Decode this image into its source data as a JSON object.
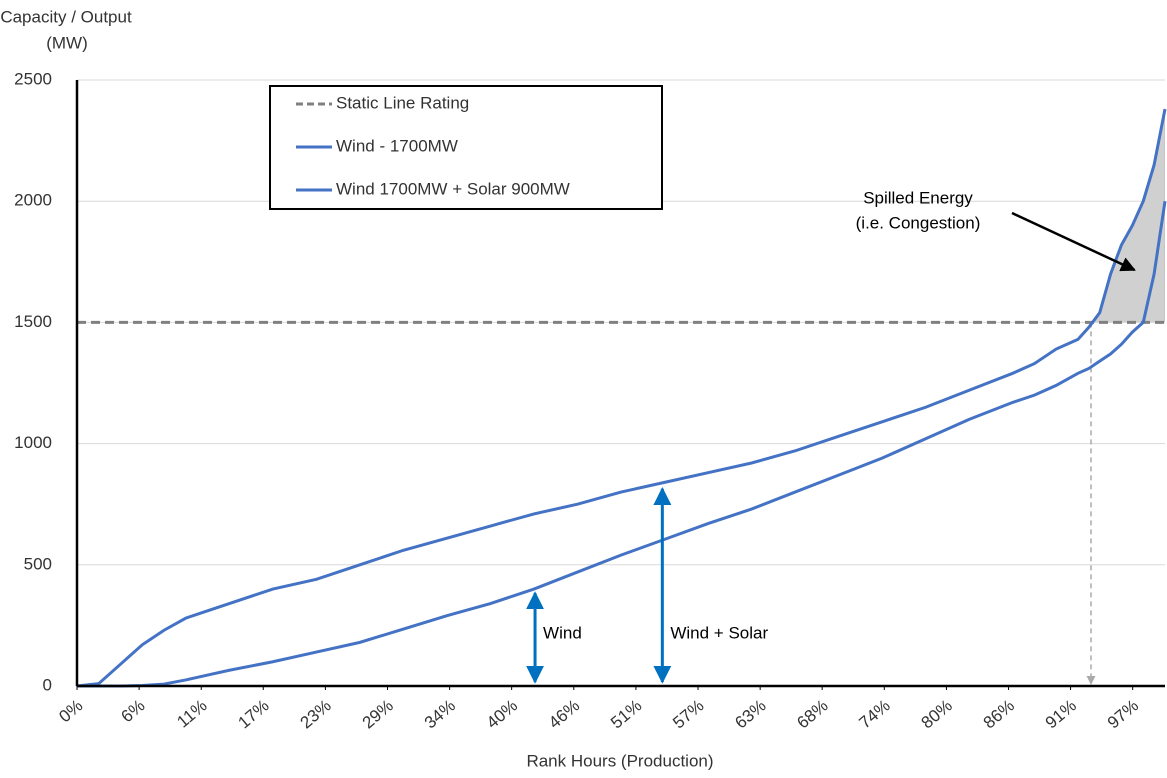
{
  "chart_data": {
    "type": "line",
    "y_title": [
      "Capacity / Output",
      "(MW)"
    ],
    "x_title": "Rank Hours (Production)",
    "x": [
      0,
      2,
      4,
      6,
      8,
      10,
      12,
      14,
      18,
      22,
      26,
      30,
      34,
      38,
      42,
      46,
      50,
      54,
      58,
      62,
      66,
      70,
      74,
      78,
      82,
      86,
      88,
      90,
      92,
      93,
      94,
      95,
      96,
      97,
      98,
      99,
      100
    ],
    "series": [
      {
        "name": "Wind - 1700MW",
        "color": "#4472c4",
        "values": [
          0,
          0,
          0,
          2,
          8,
          25,
          45,
          65,
          100,
          140,
          180,
          235,
          290,
          340,
          400,
          470,
          540,
          605,
          670,
          730,
          800,
          870,
          940,
          1020,
          1100,
          1170,
          1200,
          1240,
          1290,
          1310,
          1340,
          1370,
          1410,
          1460,
          1500,
          1700,
          2000
        ]
      },
      {
        "name": "Wind 1700MW + Solar 900MW",
        "color": "#4472c4",
        "values": [
          0,
          10,
          90,
          170,
          230,
          280,
          310,
          340,
          400,
          440,
          500,
          560,
          610,
          660,
          710,
          750,
          800,
          840,
          880,
          920,
          970,
          1030,
          1090,
          1150,
          1220,
          1290,
          1330,
          1390,
          1430,
          1480,
          1540,
          1700,
          1820,
          1900,
          2000,
          2150,
          2380
        ]
      }
    ],
    "reference_lines": [
      {
        "name": "Static Line Rating",
        "value": 1500,
        "color": "#808080"
      }
    ],
    "marker_x": 93.2,
    "annotations": [
      {
        "text": "Wind",
        "x": 42.1,
        "y": 400
      },
      {
        "text": "Wind + Solar",
        "x": 53.8,
        "y": 830
      }
    ],
    "spill_annotation": {
      "text": [
        "Spilled Energy",
        "(i.e. Congestion)"
      ],
      "x": 97.2,
      "y": 1716
    },
    "xlim": [
      0,
      100
    ],
    "xticks": [
      {
        "value": 0,
        "label": "0%"
      },
      {
        "value": 5.71,
        "label": "6%"
      },
      {
        "value": 11.42,
        "label": "11%"
      },
      {
        "value": 17.12,
        "label": "17%"
      },
      {
        "value": 22.83,
        "label": "23%"
      },
      {
        "value": 28.54,
        "label": "29%"
      },
      {
        "value": 34.25,
        "label": "34%"
      },
      {
        "value": 39.95,
        "label": "40%"
      },
      {
        "value": 45.66,
        "label": "46%"
      },
      {
        "value": 51.37,
        "label": "51%"
      },
      {
        "value": 57.08,
        "label": "57%"
      },
      {
        "value": 62.79,
        "label": "63%"
      },
      {
        "value": 68.49,
        "label": "68%"
      },
      {
        "value": 74.2,
        "label": "74%"
      },
      {
        "value": 79.91,
        "label": "80%"
      },
      {
        "value": 85.62,
        "label": "86%"
      },
      {
        "value": 91.32,
        "label": "91%"
      },
      {
        "value": 97.03,
        "label": "97%"
      }
    ],
    "ylim": [
      0,
      2500
    ],
    "yticks": [
      0,
      500,
      1000,
      1500,
      2000,
      2500
    ],
    "grid": true
  }
}
